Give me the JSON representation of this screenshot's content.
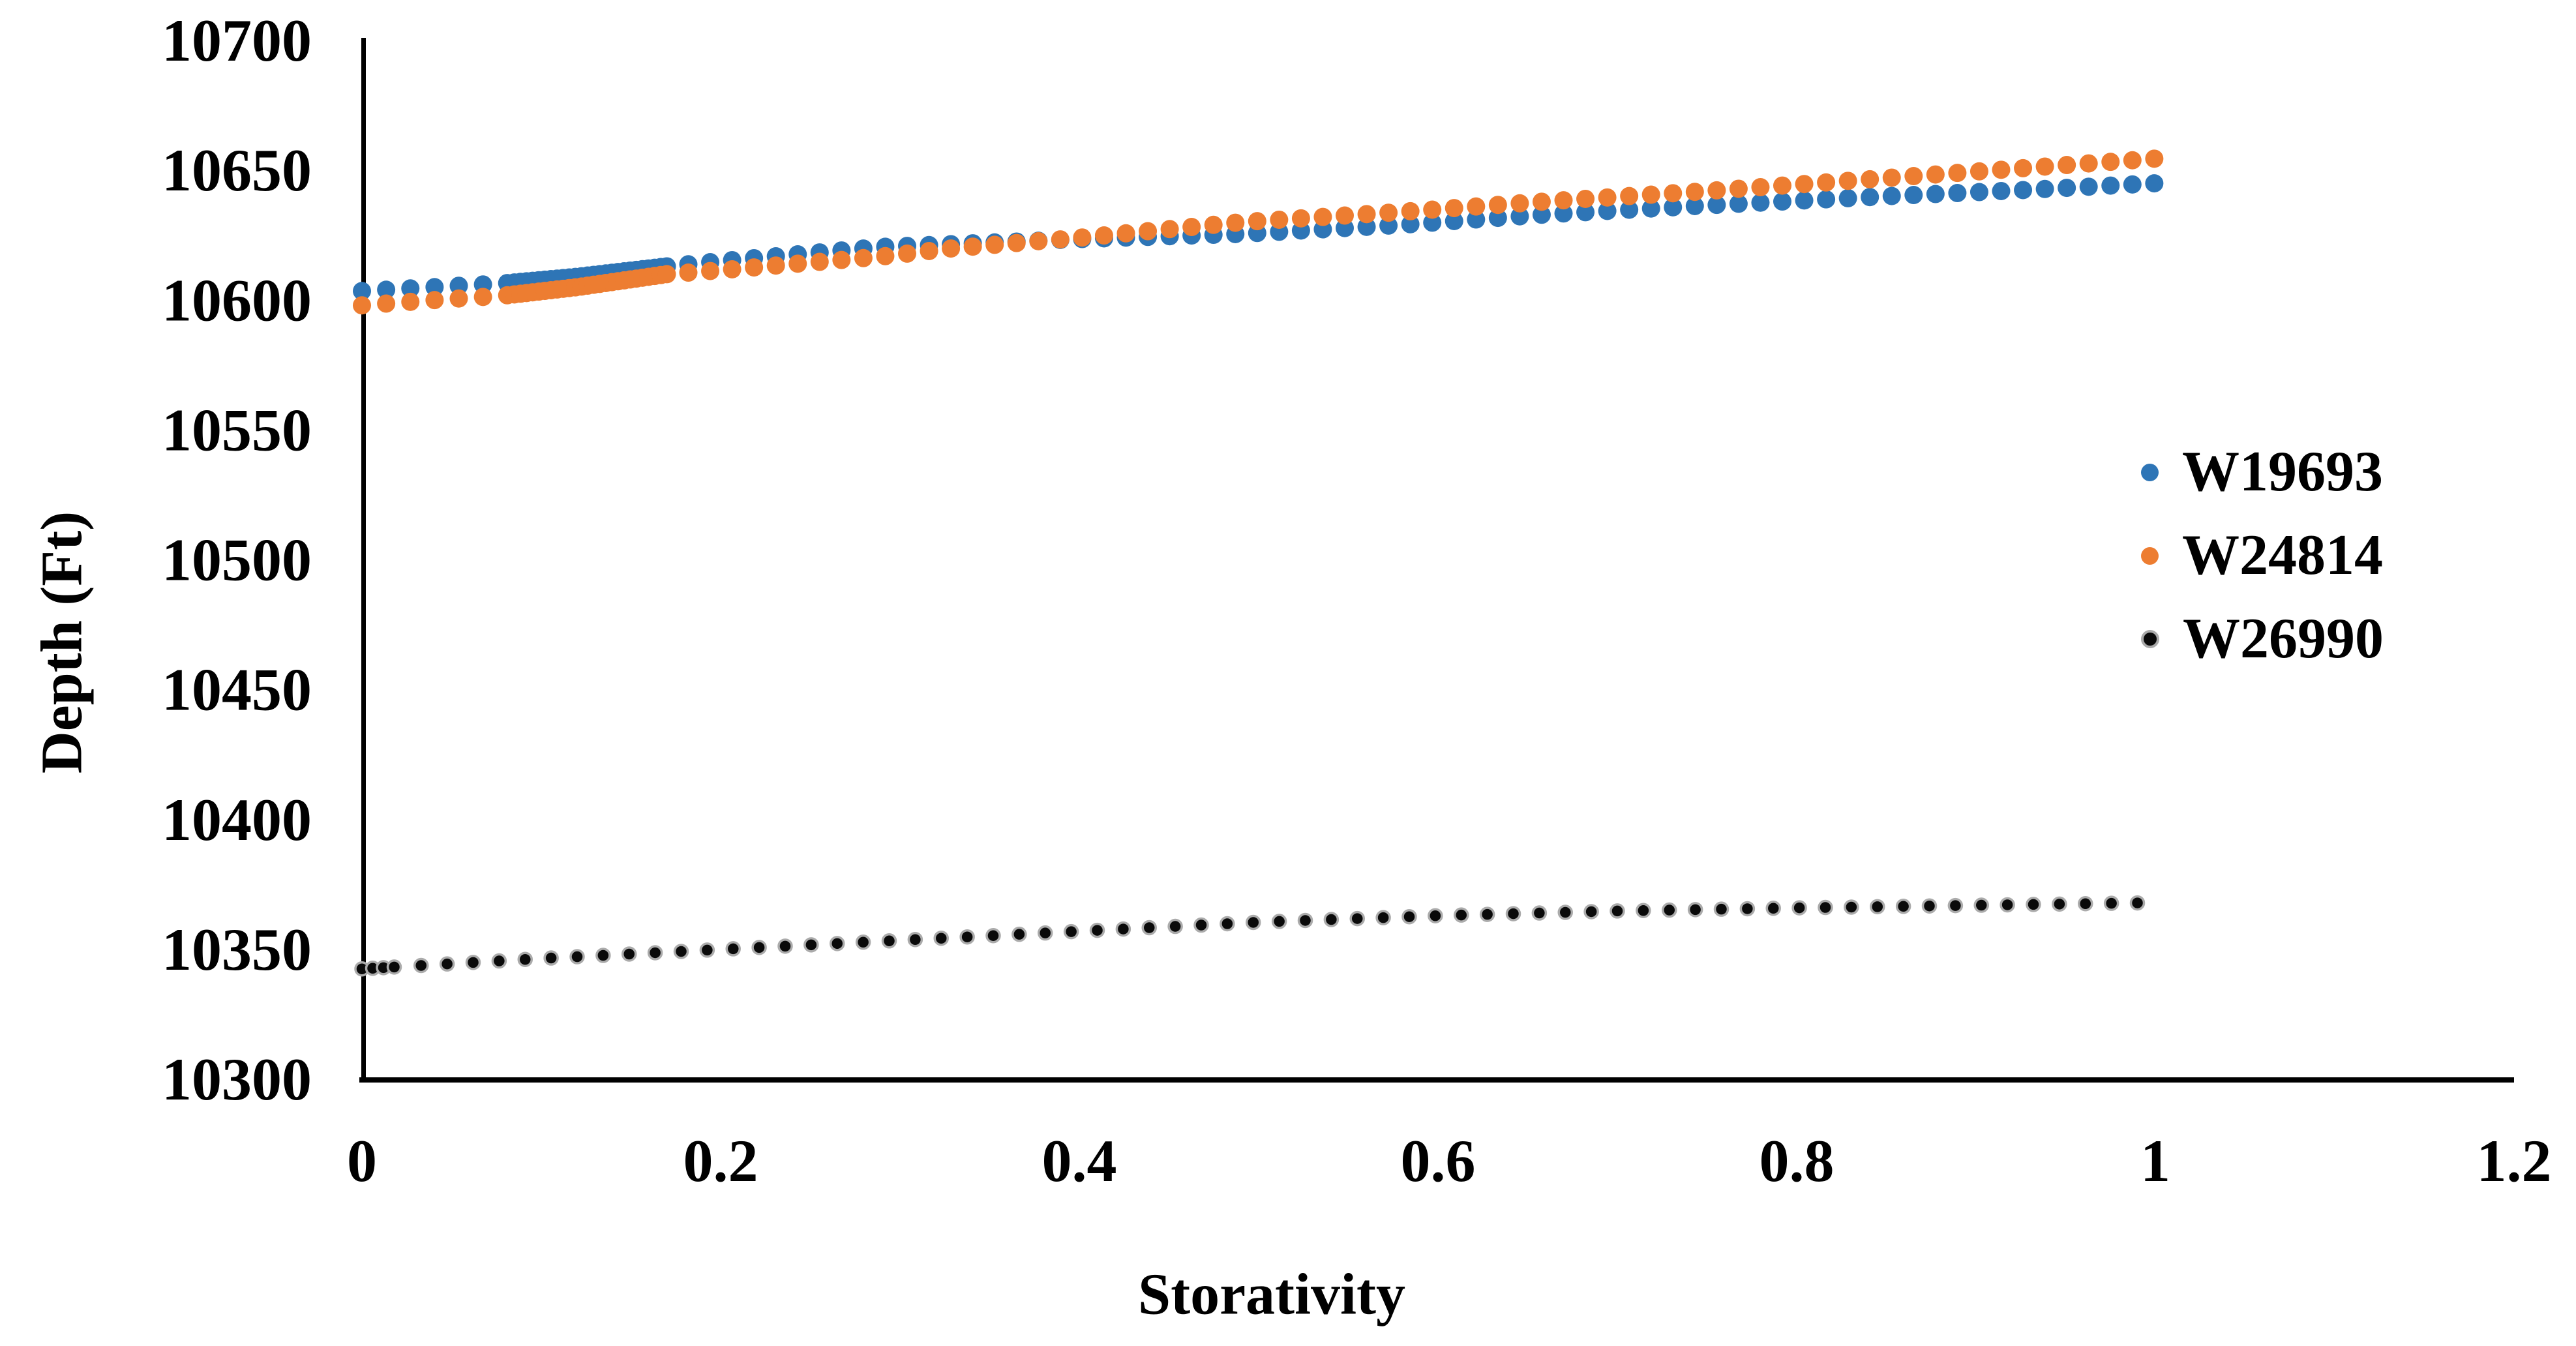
{
  "chart_data": {
    "type": "scatter",
    "title": "",
    "xlabel": "Storativity",
    "ylabel": "Depth (Ft)",
    "xlim": [
      0,
      1.2
    ],
    "ylim": [
      10300,
      10700
    ],
    "grid": false,
    "legend_position": "middle-right",
    "x_ticks": [
      0,
      0.2,
      0.4,
      0.6,
      0.8,
      1,
      1.2
    ],
    "x_tick_labels": [
      "0",
      "0.2",
      "0.4",
      "0.6",
      "0.8",
      "1",
      "1.2"
    ],
    "y_ticks": [
      10300,
      10350,
      10400,
      10450,
      10500,
      10550,
      10600,
      10650,
      10700
    ],
    "y_tick_labels": [
      "10300",
      "10350",
      "10400",
      "10450",
      "10500",
      "10550",
      "10600",
      "10650",
      "10700"
    ],
    "series": [
      {
        "name": "W19693",
        "color": "#2E75B6",
        "marker": "circle",
        "marker_radius": 14,
        "anchors": [
          [
            0,
            10603.5
          ],
          [
            0.04,
            10605
          ],
          [
            0.08,
            10606.5
          ],
          [
            0.12,
            10609
          ],
          [
            0.17,
            10613
          ],
          [
            0.2,
            10615
          ],
          [
            0.29,
            10620.5
          ],
          [
            0.4,
            10623.5
          ],
          [
            0.49,
            10625.5
          ],
          [
            0.58,
            10629
          ],
          [
            0.66,
            10633
          ],
          [
            0.75,
            10636.5
          ],
          [
            0.85,
            10640
          ],
          [
            0.93,
            10642.5
          ],
          [
            1,
            10645
          ]
        ],
        "x_runs": [
          {
            "from": 0,
            "to": 0.081,
            "step": 0.0135
          },
          {
            "from": 0.085,
            "to": 0.17,
            "step": 0.0034
          },
          {
            "from": 0.182,
            "to": 1.0,
            "step": 0.0122
          }
        ]
      },
      {
        "name": "W24814",
        "color": "#ED7D31",
        "marker": "circle",
        "marker_radius": 14,
        "anchors": [
          [
            0,
            10598
          ],
          [
            0.04,
            10600
          ],
          [
            0.08,
            10601.8
          ],
          [
            0.12,
            10605
          ],
          [
            0.17,
            10610
          ],
          [
            0.2,
            10611.5
          ],
          [
            0.29,
            10616.8
          ],
          [
            0.33,
            10620
          ],
          [
            0.4,
            10624
          ],
          [
            0.49,
            10630
          ],
          [
            0.58,
            10634
          ],
          [
            0.66,
            10638
          ],
          [
            0.75,
            10642
          ],
          [
            0.85,
            10647
          ],
          [
            0.93,
            10651
          ],
          [
            1,
            10654.5
          ]
        ],
        "x_runs": [
          {
            "from": 0,
            "to": 0.081,
            "step": 0.0135
          },
          {
            "from": 0.085,
            "to": 0.17,
            "step": 0.0034
          },
          {
            "from": 0.182,
            "to": 1.0,
            "step": 0.0122
          }
        ]
      },
      {
        "name": "W26990",
        "color": "#0A0A0A",
        "ring_color": "#ABABAB",
        "marker": "circle-ringed",
        "marker_radius": 10,
        "anchors": [
          [
            0,
            10342.5
          ],
          [
            0.05,
            10344.5
          ],
          [
            0.1,
            10346.5
          ],
          [
            0.2,
            10350
          ],
          [
            0.3,
            10353.5
          ],
          [
            0.4,
            10357
          ],
          [
            0.5,
            10360.5
          ],
          [
            0.6,
            10363
          ],
          [
            0.7,
            10364.8
          ],
          [
            0.8,
            10366
          ],
          [
            0.9,
            10367
          ],
          [
            1,
            10368
          ]
        ],
        "x_runs": [
          {
            "from": 0,
            "to": 0.018,
            "step": 0.006
          },
          {
            "from": 0.033,
            "to": 0.99,
            "step": 0.0145
          }
        ]
      }
    ]
  },
  "axes": {
    "x_title": "Storativity",
    "y_title": "Depth (Ft)",
    "axis_color": "#000000"
  },
  "legend": {
    "items": [
      {
        "label": "W19693",
        "color": "#2E75B6",
        "ring": false
      },
      {
        "label": "W24814",
        "color": "#ED7D31",
        "ring": false
      },
      {
        "label": "W26990",
        "color": "#0A0A0A",
        "ring": true,
        "ring_color": "#ABABAB"
      }
    ]
  }
}
